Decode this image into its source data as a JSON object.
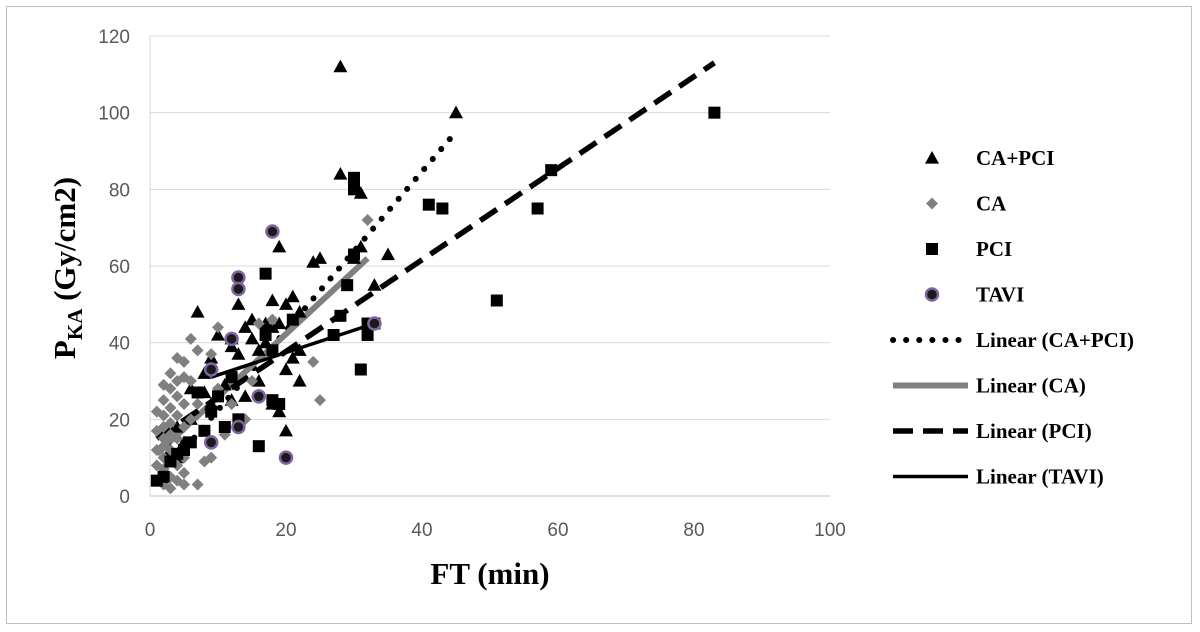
{
  "chart_data": {
    "type": "scatter",
    "xlabel": "FT (min)",
    "ylabel": {
      "main": "P",
      "sub": "KA",
      "rest": " (Gy/cm2)"
    },
    "xlim": [
      0,
      100
    ],
    "ylim": [
      0,
      120
    ],
    "x_ticks": [
      0,
      20,
      40,
      60,
      80,
      100
    ],
    "y_ticks": [
      0,
      20,
      40,
      60,
      80,
      100,
      120
    ],
    "grid": "horizontal",
    "legend_position": "right",
    "series": [
      {
        "name": "CA+PCI",
        "marker": "triangle",
        "color": "#000000",
        "points": [
          [
            28,
            112
          ],
          [
            45,
            100
          ],
          [
            28,
            84
          ],
          [
            31,
            79
          ],
          [
            19,
            65
          ],
          [
            35,
            63
          ],
          [
            25,
            62
          ],
          [
            24,
            61
          ],
          [
            30,
            62
          ],
          [
            31,
            65
          ],
          [
            18,
            51
          ],
          [
            21,
            52
          ],
          [
            20,
            50
          ],
          [
            22,
            48
          ],
          [
            13,
            50
          ],
          [
            7,
            48
          ],
          [
            15,
            46
          ],
          [
            17,
            45
          ],
          [
            19,
            45
          ],
          [
            18,
            44
          ],
          [
            33,
            55
          ],
          [
            17,
            40
          ],
          [
            15,
            41
          ],
          [
            10,
            42
          ],
          [
            12,
            39
          ],
          [
            13,
            37
          ],
          [
            16,
            38
          ],
          [
            21,
            36
          ],
          [
            9,
            36
          ],
          [
            8,
            32
          ],
          [
            20,
            33
          ],
          [
            22,
            30
          ],
          [
            16,
            30
          ],
          [
            11,
            29
          ],
          [
            6,
            28
          ],
          [
            8,
            27
          ],
          [
            12,
            25
          ],
          [
            14,
            26
          ],
          [
            9,
            24
          ],
          [
            6,
            20
          ],
          [
            19,
            22
          ],
          [
            18,
            24
          ],
          [
            20,
            17
          ],
          [
            4,
            18
          ],
          [
            5,
            14
          ],
          [
            3,
            12
          ],
          [
            4,
            10
          ],
          [
            12,
            41
          ],
          [
            14,
            44
          ],
          [
            22,
            38
          ]
        ]
      },
      {
        "name": "CA",
        "marker": "diamond",
        "color": "#808080",
        "points": [
          [
            32,
            72
          ],
          [
            13,
            56
          ],
          [
            18,
            46
          ],
          [
            16,
            45
          ],
          [
            10,
            44
          ],
          [
            6,
            41
          ],
          [
            7,
            38
          ],
          [
            9,
            37
          ],
          [
            4,
            36
          ],
          [
            5,
            35
          ],
          [
            24,
            35
          ],
          [
            3,
            32
          ],
          [
            5,
            31
          ],
          [
            4,
            30
          ],
          [
            2,
            29
          ],
          [
            6,
            30
          ],
          [
            3,
            28
          ],
          [
            4,
            26
          ],
          [
            2,
            25
          ],
          [
            5,
            24
          ],
          [
            7,
            24
          ],
          [
            3,
            23
          ],
          [
            1,
            22
          ],
          [
            2,
            21
          ],
          [
            4,
            21
          ],
          [
            6,
            20
          ],
          [
            3,
            19
          ],
          [
            2,
            18
          ],
          [
            5,
            18
          ],
          [
            1,
            17
          ],
          [
            3,
            16
          ],
          [
            2,
            15
          ],
          [
            4,
            15
          ],
          [
            6,
            14
          ],
          [
            2,
            13
          ],
          [
            3,
            12
          ],
          [
            1,
            12
          ],
          [
            4,
            11
          ],
          [
            5,
            10
          ],
          [
            2,
            10
          ],
          [
            3,
            9
          ],
          [
            1,
            8
          ],
          [
            4,
            8
          ],
          [
            2,
            7
          ],
          [
            5,
            6
          ],
          [
            3,
            5
          ],
          [
            1,
            4
          ],
          [
            4,
            4
          ],
          [
            2,
            3
          ],
          [
            5,
            3
          ],
          [
            7,
            3
          ],
          [
            3,
            2
          ],
          [
            9,
            10
          ],
          [
            8,
            9
          ],
          [
            11,
            16
          ],
          [
            14,
            20
          ],
          [
            12,
            24
          ],
          [
            10,
            28
          ],
          [
            25,
            25
          ],
          [
            15,
            30
          ]
        ]
      },
      {
        "name": "PCI",
        "marker": "square",
        "color": "#000000",
        "points": [
          [
            83,
            100
          ],
          [
            59,
            85
          ],
          [
            41,
            76
          ],
          [
            43,
            75
          ],
          [
            57,
            75
          ],
          [
            30,
            83
          ],
          [
            30,
            80
          ],
          [
            30,
            63
          ],
          [
            29,
            55
          ],
          [
            17,
            58
          ],
          [
            51,
            51
          ],
          [
            32,
            45
          ],
          [
            33,
            45
          ],
          [
            28,
            47
          ],
          [
            27,
            42
          ],
          [
            32,
            42
          ],
          [
            31,
            33
          ],
          [
            17,
            42
          ],
          [
            18,
            38
          ],
          [
            21,
            46
          ],
          [
            7,
            27
          ],
          [
            10,
            26
          ],
          [
            12,
            31
          ],
          [
            9,
            22
          ],
          [
            18,
            25
          ],
          [
            19,
            24
          ],
          [
            6,
            14
          ],
          [
            16,
            13
          ],
          [
            2,
            5
          ],
          [
            1,
            4
          ],
          [
            4,
            11
          ],
          [
            3,
            9
          ],
          [
            5,
            12
          ],
          [
            8,
            17
          ],
          [
            13,
            20
          ],
          [
            11,
            18
          ]
        ]
      },
      {
        "name": "TAVI",
        "marker": "circle",
        "color": "#1a1a1a",
        "stroke": "#8064a2",
        "points": [
          [
            18,
            69
          ],
          [
            13,
            57
          ],
          [
            13,
            54
          ],
          [
            12,
            41
          ],
          [
            9,
            33
          ],
          [
            33,
            45
          ],
          [
            16,
            26
          ],
          [
            13,
            18
          ],
          [
            9,
            14
          ],
          [
            20,
            10
          ]
        ]
      }
    ],
    "trendlines": [
      {
        "name": "Linear (CA+PCI)",
        "style": "dotted",
        "color": "#000000",
        "from": [
          4,
          10
        ],
        "to": [
          45,
          95
        ]
      },
      {
        "name": "Linear (CA)",
        "style": "solid-thick",
        "color": "#808080",
        "from": [
          1,
          11
        ],
        "to": [
          32,
          62
        ]
      },
      {
        "name": "Linear (PCI)",
        "style": "dashed",
        "color": "#000000",
        "from": [
          1,
          15
        ],
        "to": [
          83,
          113
        ]
      },
      {
        "name": "Linear (TAVI)",
        "style": "solid",
        "color": "#000000",
        "from": [
          9,
          31
        ],
        "to": [
          33,
          45
        ]
      }
    ],
    "legend": [
      {
        "label": "CA+PCI",
        "marker": "triangle"
      },
      {
        "label": "CA",
        "marker": "diamond"
      },
      {
        "label": "PCI",
        "marker": "square"
      },
      {
        "label": "TAVI",
        "marker": "circle"
      },
      {
        "label": "Linear (CA+PCI)",
        "line": "dotted"
      },
      {
        "label": "Linear (CA)",
        "line": "solid-thick"
      },
      {
        "label": "Linear (PCI)",
        "line": "dashed"
      },
      {
        "label": "Linear (TAVI)",
        "line": "solid"
      }
    ]
  }
}
